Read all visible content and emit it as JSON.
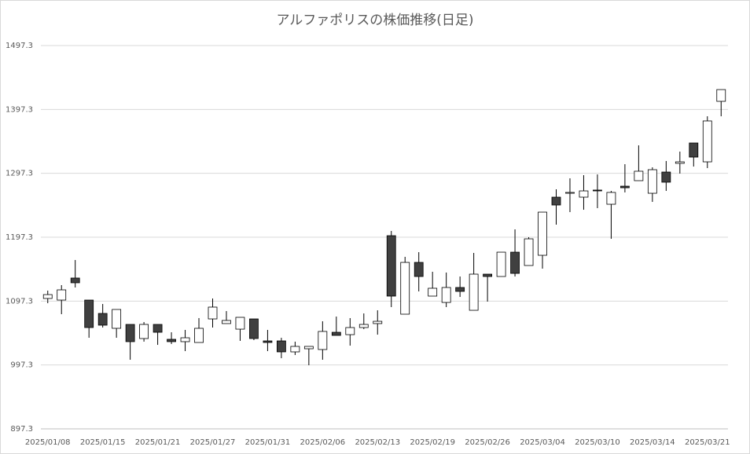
{
  "chart_data": {
    "type": "candlestick",
    "title": "アルファポリスの株価推移(日足)",
    "categories": [
      "2025/01/08",
      null,
      null,
      null,
      "2025/01/15",
      null,
      null,
      null,
      "2025/01/21",
      null,
      null,
      null,
      "2025/01/27",
      null,
      null,
      null,
      "2025/01/31",
      null,
      null,
      null,
      "2025/02/06",
      null,
      null,
      null,
      "2025/02/13",
      null,
      null,
      null,
      "2025/02/19",
      null,
      null,
      null,
      "2025/02/26",
      null,
      null,
      null,
      "2025/03/04",
      null,
      null,
      null,
      "2025/03/10",
      null,
      null,
      null,
      "2025/03/14",
      null,
      null,
      null,
      "2025/03/21",
      null
    ],
    "open": [
      1101.4,
      1098.9,
      1133.4,
      1098.9,
      1078.0,
      1054.7,
      1060.8,
      1038.7,
      1060.8,
      1037.5,
      1033.8,
      1032.5,
      1069.4,
      1062.1,
      1053.4,
      1069.4,
      1035.0,
      1035.0,
      1017.8,
      1022.7,
      1021.5,
      1048.5,
      1044.8,
      1055.9,
      1062.1,
      1199.7,
      1076.8,
      1157.9,
      1105.1,
      1095.2,
      1118.6,
      1082.9,
      1139.5,
      1135.8,
      1173.9,
      1153.0,
      1169.0,
      1260.0,
      1266.1,
      1260.0,
      1271.1,
      1248.9,
      1277.2,
      1285.8,
      1266.1,
      1299.3,
      1312.9,
      1344.8,
      1315.3,
      1410.0
    ],
    "high": [
      1113.7,
      1122.3,
      1161.6,
      1098.9,
      1092.8,
      1084.2,
      1060.8,
      1064.5,
      1060.8,
      1048.5,
      1052.2,
      1070.7,
      1101.4,
      1081.7,
      1071.9,
      1069.4,
      1052.2,
      1039.9,
      1033.8,
      1026.4,
      1065.7,
      1073.1,
      1070.7,
      1078.0,
      1082.9,
      1207.1,
      1166.6,
      1173.9,
      1143.2,
      1142.0,
      1135.8,
      1172.7,
      1139.5,
      1173.9,
      1209.6,
      1197.3,
      1236.6,
      1272.3,
      1289.5,
      1294.4,
      1295.6,
      1269.8,
      1311.6,
      1341.1,
      1306.7,
      1316.6,
      1331.3,
      1344.8,
      1386.6,
      1428.4
    ],
    "low": [
      1094.0,
      1076.8,
      1118.6,
      1039.9,
      1055.9,
      1039.9,
      1005.5,
      1033.8,
      1028.8,
      1030.1,
      1019.0,
      1032.5,
      1055.9,
      1062.1,
      1035.0,
      1036.2,
      1019.0,
      1007.9,
      1012.9,
      996.9,
      1005.5,
      1043.6,
      1027.6,
      1053.4,
      1044.8,
      1087.9,
      1076.8,
      1112.5,
      1105.1,
      1087.9,
      1103.8,
      1082.9,
      1096.5,
      1135.8,
      1135.8,
      1153.0,
      1148.1,
      1217.0,
      1236.6,
      1240.3,
      1242.8,
      1194.8,
      1267.4,
      1285.8,
      1252.6,
      1269.8,
      1296.9,
      1307.9,
      1305.5,
      1386.6
    ],
    "close": [
      1107.5,
      1114.9,
      1126.0,
      1055.9,
      1059.6,
      1084.2,
      1033.8,
      1060.8,
      1048.5,
      1033.8,
      1039.9,
      1054.7,
      1087.9,
      1067.0,
      1071.9,
      1038.7,
      1032.5,
      1017.8,
      1026.4,
      1026.4,
      1049.8,
      1043.6,
      1055.9,
      1060.8,
      1065.7,
      1105.1,
      1157.9,
      1135.8,
      1117.4,
      1118.6,
      1112.5,
      1139.5,
      1135.8,
      1173.9,
      1140.7,
      1194.8,
      1236.6,
      1247.7,
      1267.4,
      1269.8,
      1269.8,
      1267.4,
      1274.7,
      1300.6,
      1303.0,
      1283.4,
      1315.3,
      1322.7,
      1379.3,
      1428.4
    ],
    "colors": {
      "up": "#ffffff",
      "down": "#404040"
    },
    "ylim": [
      897.3,
      1497.3
    ],
    "yticks": [
      897.3,
      997.3,
      1097.3,
      1197.3,
      1297.3,
      1397.3,
      1497.3
    ],
    "grid": true
  }
}
